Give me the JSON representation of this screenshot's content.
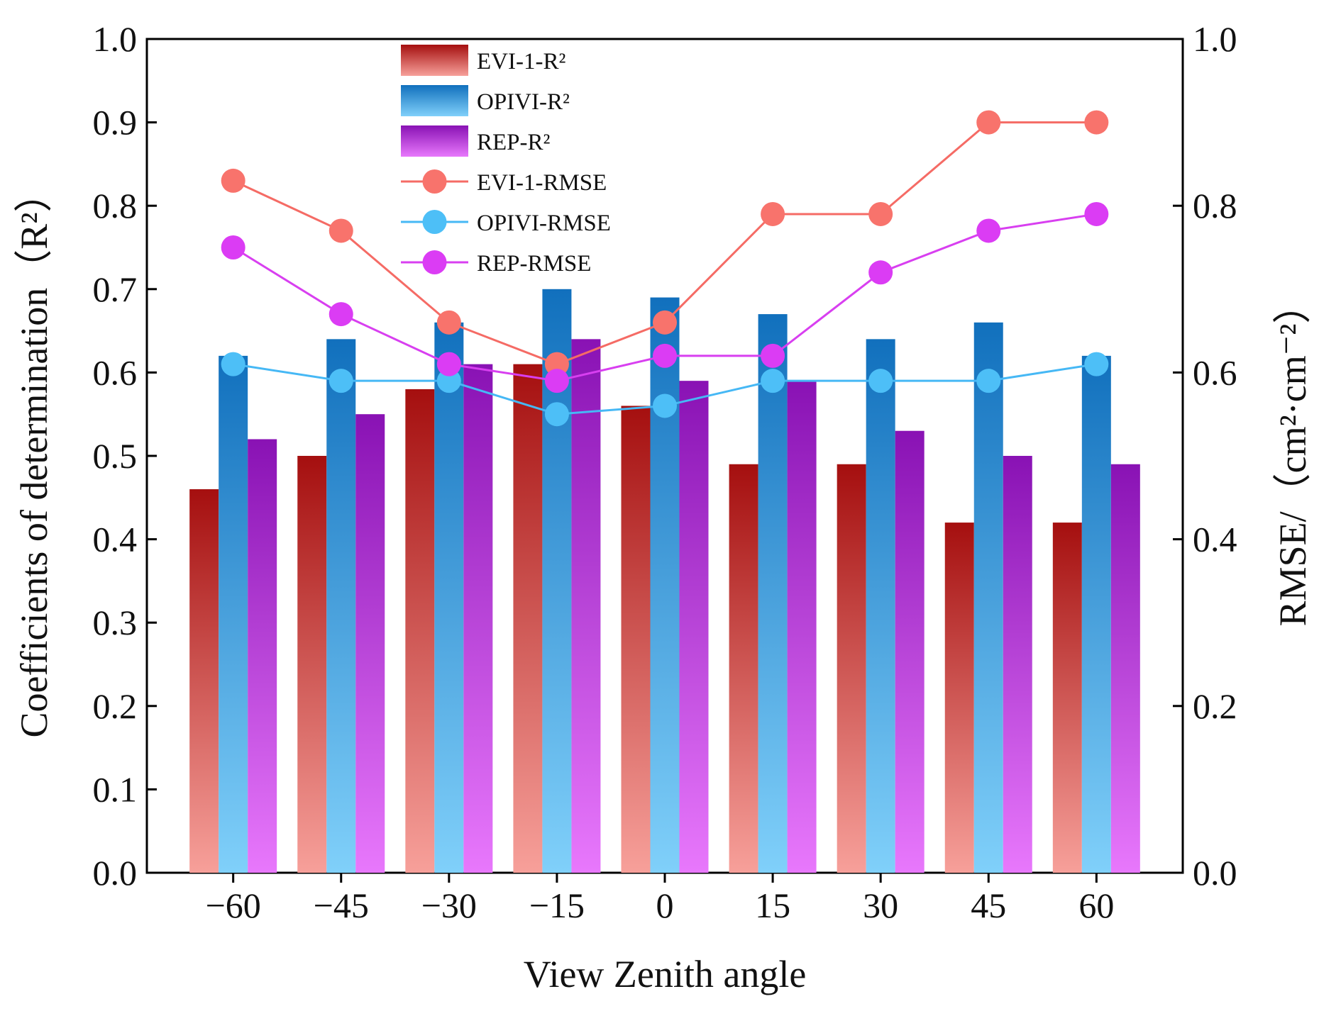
{
  "chart_data": {
    "type": "bar+line",
    "title": "",
    "xlabel": "View Zenith angle",
    "ylabel_left": "Coefficients of determination（R²）",
    "ylabel_right": "RMSE/（cm²·cm⁻²）",
    "categories": [
      "−60",
      "−45",
      "−30",
      "−15",
      "0",
      "15",
      "30",
      "45",
      "60"
    ],
    "ylim_left": [
      0,
      1.0
    ],
    "ylim_right": [
      0,
      1.0
    ],
    "yticks_left": [
      "0.0",
      "0.1",
      "0.2",
      "0.3",
      "0.4",
      "0.5",
      "0.6",
      "0.7",
      "0.8",
      "0.9",
      "1.0"
    ],
    "yticks_right": [
      "0.0",
      "0.2",
      "0.4",
      "0.6",
      "0.8",
      "1.0"
    ],
    "bar_series": [
      {
        "name": "EVI-1-R²",
        "color_top": "#a50f0f",
        "color_bottom": "#f7a09a",
        "values": [
          0.46,
          0.5,
          0.58,
          0.61,
          0.56,
          0.49,
          0.49,
          0.42,
          0.42
        ]
      },
      {
        "name": "OPIVI-R²",
        "color_top": "#1170bd",
        "color_bottom": "#80d0fa",
        "values": [
          0.62,
          0.64,
          0.66,
          0.7,
          0.69,
          0.67,
          0.64,
          0.66,
          0.62
        ]
      },
      {
        "name": "REP-R²",
        "color_top": "#8912b4",
        "color_bottom": "#e878fc",
        "values": [
          0.52,
          0.55,
          0.61,
          0.64,
          0.59,
          0.59,
          0.53,
          0.5,
          0.49
        ]
      }
    ],
    "line_series": [
      {
        "name": "EVI-1-RMSE",
        "color": "#f56b65",
        "marker_color": "#f8736c",
        "values": [
          0.83,
          0.77,
          0.66,
          0.61,
          0.66,
          0.79,
          0.79,
          0.9,
          0.9
        ]
      },
      {
        "name": "OPIVI-RMSE",
        "color": "#46b8f5",
        "marker_color": "#4dbff7",
        "values": [
          0.61,
          0.59,
          0.59,
          0.55,
          0.56,
          0.59,
          0.59,
          0.59,
          0.61
        ]
      },
      {
        "name": "REP-RMSE",
        "color": "#d83ff0",
        "marker_color": "#db3cf4",
        "values": [
          0.75,
          0.67,
          0.61,
          0.59,
          0.62,
          0.62,
          0.72,
          0.77,
          0.79
        ]
      }
    ],
    "legend": {
      "position": "top-center",
      "entries": [
        "EVI-1-R²",
        "OPIVI-R²",
        "REP-R²",
        "EVI-1-RMSE",
        "OPIVI-RMSE",
        "REP-RMSE"
      ]
    }
  }
}
